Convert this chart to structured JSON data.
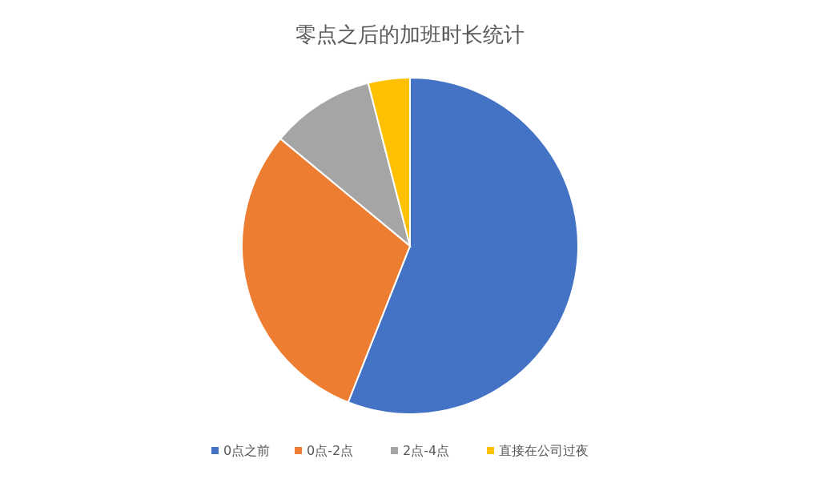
{
  "chart_data": {
    "type": "pie",
    "title": "零点之后的加班时长统计",
    "categories": [
      "0点之前",
      "0点-2点",
      "2点-4点",
      "直接在公司过夜"
    ],
    "values": [
      56,
      30,
      10,
      4
    ],
    "colors": [
      "#4472c4",
      "#ed7d31",
      "#a5a5a5",
      "#ffc000"
    ],
    "legend": "bottom"
  }
}
